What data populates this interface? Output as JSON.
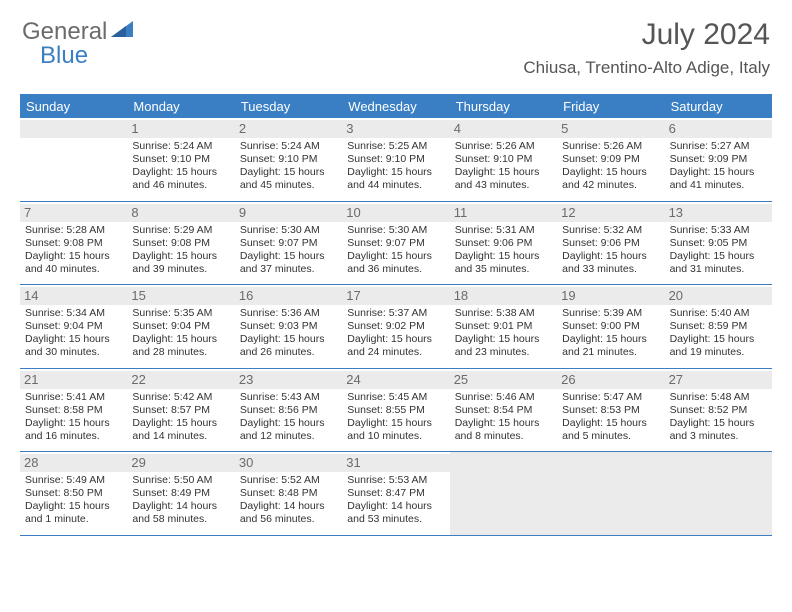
{
  "logo": {
    "general": "General",
    "blue": "Blue"
  },
  "title": "July 2024",
  "location": "Chiusa, Trentino-Alto Adige, Italy",
  "colors": {
    "accent": "#3a7fc4",
    "header_row_bg": "#ebebeb",
    "text": "#333333"
  },
  "dayHeaders": [
    "Sunday",
    "Monday",
    "Tuesday",
    "Wednesday",
    "Thursday",
    "Friday",
    "Saturday"
  ],
  "weeks": [
    [
      null,
      {
        "d": "1",
        "sr": "Sunrise: 5:24 AM",
        "ss": "Sunset: 9:10 PM",
        "dl1": "Daylight: 15 hours",
        "dl2": "and 46 minutes."
      },
      {
        "d": "2",
        "sr": "Sunrise: 5:24 AM",
        "ss": "Sunset: 9:10 PM",
        "dl1": "Daylight: 15 hours",
        "dl2": "and 45 minutes."
      },
      {
        "d": "3",
        "sr": "Sunrise: 5:25 AM",
        "ss": "Sunset: 9:10 PM",
        "dl1": "Daylight: 15 hours",
        "dl2": "and 44 minutes."
      },
      {
        "d": "4",
        "sr": "Sunrise: 5:26 AM",
        "ss": "Sunset: 9:10 PM",
        "dl1": "Daylight: 15 hours",
        "dl2": "and 43 minutes."
      },
      {
        "d": "5",
        "sr": "Sunrise: 5:26 AM",
        "ss": "Sunset: 9:09 PM",
        "dl1": "Daylight: 15 hours",
        "dl2": "and 42 minutes."
      },
      {
        "d": "6",
        "sr": "Sunrise: 5:27 AM",
        "ss": "Sunset: 9:09 PM",
        "dl1": "Daylight: 15 hours",
        "dl2": "and 41 minutes."
      }
    ],
    [
      {
        "d": "7",
        "sr": "Sunrise: 5:28 AM",
        "ss": "Sunset: 9:08 PM",
        "dl1": "Daylight: 15 hours",
        "dl2": "and 40 minutes."
      },
      {
        "d": "8",
        "sr": "Sunrise: 5:29 AM",
        "ss": "Sunset: 9:08 PM",
        "dl1": "Daylight: 15 hours",
        "dl2": "and 39 minutes."
      },
      {
        "d": "9",
        "sr": "Sunrise: 5:30 AM",
        "ss": "Sunset: 9:07 PM",
        "dl1": "Daylight: 15 hours",
        "dl2": "and 37 minutes."
      },
      {
        "d": "10",
        "sr": "Sunrise: 5:30 AM",
        "ss": "Sunset: 9:07 PM",
        "dl1": "Daylight: 15 hours",
        "dl2": "and 36 minutes."
      },
      {
        "d": "11",
        "sr": "Sunrise: 5:31 AM",
        "ss": "Sunset: 9:06 PM",
        "dl1": "Daylight: 15 hours",
        "dl2": "and 35 minutes."
      },
      {
        "d": "12",
        "sr": "Sunrise: 5:32 AM",
        "ss": "Sunset: 9:06 PM",
        "dl1": "Daylight: 15 hours",
        "dl2": "and 33 minutes."
      },
      {
        "d": "13",
        "sr": "Sunrise: 5:33 AM",
        "ss": "Sunset: 9:05 PM",
        "dl1": "Daylight: 15 hours",
        "dl2": "and 31 minutes."
      }
    ],
    [
      {
        "d": "14",
        "sr": "Sunrise: 5:34 AM",
        "ss": "Sunset: 9:04 PM",
        "dl1": "Daylight: 15 hours",
        "dl2": "and 30 minutes."
      },
      {
        "d": "15",
        "sr": "Sunrise: 5:35 AM",
        "ss": "Sunset: 9:04 PM",
        "dl1": "Daylight: 15 hours",
        "dl2": "and 28 minutes."
      },
      {
        "d": "16",
        "sr": "Sunrise: 5:36 AM",
        "ss": "Sunset: 9:03 PM",
        "dl1": "Daylight: 15 hours",
        "dl2": "and 26 minutes."
      },
      {
        "d": "17",
        "sr": "Sunrise: 5:37 AM",
        "ss": "Sunset: 9:02 PM",
        "dl1": "Daylight: 15 hours",
        "dl2": "and 24 minutes."
      },
      {
        "d": "18",
        "sr": "Sunrise: 5:38 AM",
        "ss": "Sunset: 9:01 PM",
        "dl1": "Daylight: 15 hours",
        "dl2": "and 23 minutes."
      },
      {
        "d": "19",
        "sr": "Sunrise: 5:39 AM",
        "ss": "Sunset: 9:00 PM",
        "dl1": "Daylight: 15 hours",
        "dl2": "and 21 minutes."
      },
      {
        "d": "20",
        "sr": "Sunrise: 5:40 AM",
        "ss": "Sunset: 8:59 PM",
        "dl1": "Daylight: 15 hours",
        "dl2": "and 19 minutes."
      }
    ],
    [
      {
        "d": "21",
        "sr": "Sunrise: 5:41 AM",
        "ss": "Sunset: 8:58 PM",
        "dl1": "Daylight: 15 hours",
        "dl2": "and 16 minutes."
      },
      {
        "d": "22",
        "sr": "Sunrise: 5:42 AM",
        "ss": "Sunset: 8:57 PM",
        "dl1": "Daylight: 15 hours",
        "dl2": "and 14 minutes."
      },
      {
        "d": "23",
        "sr": "Sunrise: 5:43 AM",
        "ss": "Sunset: 8:56 PM",
        "dl1": "Daylight: 15 hours",
        "dl2": "and 12 minutes."
      },
      {
        "d": "24",
        "sr": "Sunrise: 5:45 AM",
        "ss": "Sunset: 8:55 PM",
        "dl1": "Daylight: 15 hours",
        "dl2": "and 10 minutes."
      },
      {
        "d": "25",
        "sr": "Sunrise: 5:46 AM",
        "ss": "Sunset: 8:54 PM",
        "dl1": "Daylight: 15 hours",
        "dl2": "and 8 minutes."
      },
      {
        "d": "26",
        "sr": "Sunrise: 5:47 AM",
        "ss": "Sunset: 8:53 PM",
        "dl1": "Daylight: 15 hours",
        "dl2": "and 5 minutes."
      },
      {
        "d": "27",
        "sr": "Sunrise: 5:48 AM",
        "ss": "Sunset: 8:52 PM",
        "dl1": "Daylight: 15 hours",
        "dl2": "and 3 minutes."
      }
    ],
    [
      {
        "d": "28",
        "sr": "Sunrise: 5:49 AM",
        "ss": "Sunset: 8:50 PM",
        "dl1": "Daylight: 15 hours",
        "dl2": "and 1 minute."
      },
      {
        "d": "29",
        "sr": "Sunrise: 5:50 AM",
        "ss": "Sunset: 8:49 PM",
        "dl1": "Daylight: 14 hours",
        "dl2": "and 58 minutes."
      },
      {
        "d": "30",
        "sr": "Sunrise: 5:52 AM",
        "ss": "Sunset: 8:48 PM",
        "dl1": "Daylight: 14 hours",
        "dl2": "and 56 minutes."
      },
      {
        "d": "31",
        "sr": "Sunrise: 5:53 AM",
        "ss": "Sunset: 8:47 PM",
        "dl1": "Daylight: 14 hours",
        "dl2": "and 53 minutes."
      },
      null,
      null,
      null
    ]
  ]
}
